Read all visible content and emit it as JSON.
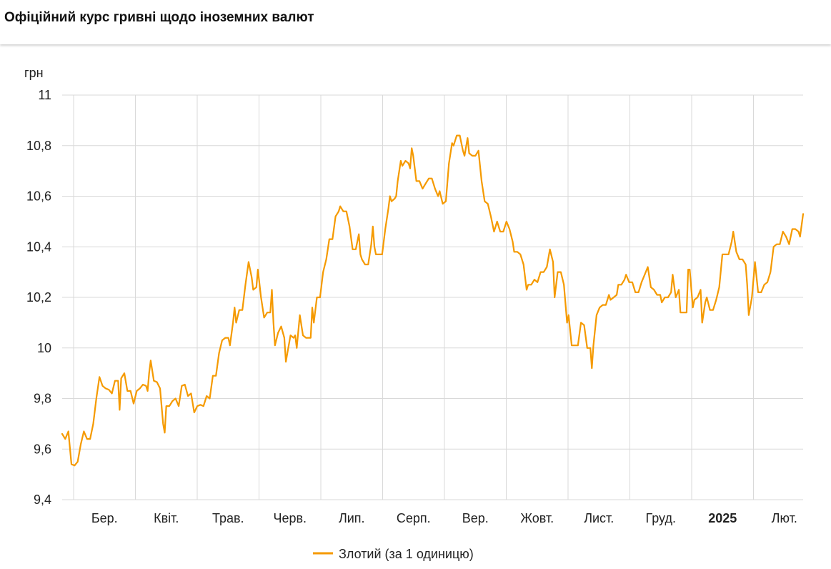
{
  "header": {
    "title": "Офіційний курс гривні щодо іноземних валют"
  },
  "colors": {
    "series": "#f59a00",
    "grid": "#d9d9d9"
  },
  "chart_data": {
    "type": "line",
    "ylabel": "грн",
    "ylim": [
      9.4,
      11
    ],
    "yticks": [
      "9,4",
      "9,6",
      "9,8",
      "10",
      "10,2",
      "10,4",
      "10,6",
      "10,8",
      "11"
    ],
    "yvalues": [
      9.4,
      9.6,
      9.8,
      10.0,
      10.2,
      10.4,
      10.6,
      10.8,
      11.0
    ],
    "xticks": [
      {
        "label": "Бер.",
        "bold": false
      },
      {
        "label": "Квіт.",
        "bold": false
      },
      {
        "label": "Трав.",
        "bold": false
      },
      {
        "label": "Черв.",
        "bold": false
      },
      {
        "label": "Лип.",
        "bold": false
      },
      {
        "label": "Серп.",
        "bold": false
      },
      {
        "label": "Вер.",
        "bold": false
      },
      {
        "label": "Жовт.",
        "bold": false
      },
      {
        "label": "Лист.",
        "bold": false
      },
      {
        "label": "Груд.",
        "bold": false
      },
      {
        "label": "2025",
        "bold": true
      },
      {
        "label": "Лют.",
        "bold": false
      }
    ],
    "grid": true,
    "legend": "bottom-center",
    "series": [
      {
        "name": "Злотий (за 1 одиницю)",
        "points": [
          [
            0,
            9.66
          ],
          [
            2,
            9.64
          ],
          [
            4,
            9.67
          ],
          [
            6,
            9.54
          ],
          [
            8,
            9.535
          ],
          [
            10,
            9.55
          ],
          [
            12,
            9.62
          ],
          [
            14,
            9.67
          ],
          [
            16,
            9.64
          ],
          [
            18,
            9.64
          ],
          [
            20,
            9.7
          ],
          [
            22,
            9.8
          ],
          [
            24,
            9.885
          ],
          [
            26,
            9.85
          ],
          [
            28,
            9.84
          ],
          [
            30,
            9.835
          ],
          [
            32,
            9.82
          ],
          [
            34,
            9.87
          ],
          [
            36,
            9.87
          ],
          [
            37,
            9.755
          ],
          [
            38,
            9.88
          ],
          [
            40,
            9.9
          ],
          [
            42,
            9.83
          ],
          [
            44,
            9.83
          ],
          [
            46,
            9.78
          ],
          [
            48,
            9.83
          ],
          [
            50,
            9.84
          ],
          [
            52,
            9.855
          ],
          [
            54,
            9.85
          ],
          [
            55,
            9.83
          ],
          [
            56,
            9.9
          ],
          [
            57,
            9.95
          ],
          [
            59,
            9.87
          ],
          [
            61,
            9.865
          ],
          [
            63,
            9.84
          ],
          [
            65,
            9.7
          ],
          [
            66,
            9.665
          ],
          [
            67,
            9.77
          ],
          [
            69,
            9.77
          ],
          [
            71,
            9.79
          ],
          [
            73,
            9.8
          ],
          [
            75,
            9.77
          ],
          [
            77,
            9.85
          ],
          [
            79,
            9.855
          ],
          [
            81,
            9.81
          ],
          [
            83,
            9.82
          ],
          [
            85,
            9.745
          ],
          [
            87,
            9.77
          ],
          [
            89,
            9.775
          ],
          [
            91,
            9.77
          ],
          [
            93,
            9.81
          ],
          [
            95,
            9.8
          ],
          [
            97,
            9.89
          ],
          [
            99,
            9.89
          ],
          [
            101,
            9.98
          ],
          [
            103,
            10.03
          ],
          [
            105,
            10.04
          ],
          [
            107,
            10.04
          ],
          [
            108,
            10.01
          ],
          [
            110,
            10.1
          ],
          [
            111,
            10.16
          ],
          [
            112,
            10.1
          ],
          [
            114,
            10.15
          ],
          [
            116,
            10.15
          ],
          [
            118,
            10.25
          ],
          [
            120,
            10.34
          ],
          [
            122,
            10.28
          ],
          [
            123,
            10.23
          ],
          [
            125,
            10.24
          ],
          [
            126,
            10.31
          ],
          [
            128,
            10.2
          ],
          [
            130,
            10.12
          ],
          [
            132,
            10.14
          ],
          [
            134,
            10.14
          ],
          [
            135,
            10.23
          ],
          [
            136,
            10.1
          ],
          [
            137,
            10.01
          ],
          [
            139,
            10.06
          ],
          [
            141,
            10.085
          ],
          [
            143,
            10.04
          ],
          [
            144,
            9.945
          ],
          [
            145,
            9.98
          ],
          [
            147,
            10.05
          ],
          [
            149,
            10.04
          ],
          [
            150,
            10.05
          ],
          [
            151,
            10.0
          ],
          [
            153,
            10.13
          ],
          [
            155,
            10.05
          ],
          [
            157,
            10.04
          ],
          [
            159,
            10.04
          ],
          [
            160,
            10.04
          ],
          [
            161,
            10.16
          ],
          [
            162,
            10.1
          ],
          [
            164,
            10.2
          ],
          [
            166,
            10.2
          ],
          [
            168,
            10.3
          ],
          [
            170,
            10.35
          ],
          [
            172,
            10.43
          ],
          [
            174,
            10.43
          ],
          [
            176,
            10.52
          ],
          [
            178,
            10.54
          ],
          [
            179,
            10.56
          ],
          [
            181,
            10.54
          ],
          [
            183,
            10.54
          ],
          [
            185,
            10.48
          ],
          [
            187,
            10.39
          ],
          [
            189,
            10.39
          ],
          [
            191,
            10.45
          ],
          [
            192,
            10.37
          ],
          [
            193,
            10.35
          ],
          [
            195,
            10.33
          ],
          [
            197,
            10.33
          ],
          [
            199,
            10.41
          ],
          [
            200,
            10.48
          ],
          [
            201,
            10.4
          ],
          [
            202,
            10.37
          ],
          [
            204,
            10.37
          ],
          [
            206,
            10.37
          ],
          [
            208,
            10.47
          ],
          [
            210,
            10.55
          ],
          [
            211,
            10.6
          ],
          [
            212,
            10.58
          ],
          [
            214,
            10.59
          ],
          [
            215,
            10.6
          ],
          [
            216,
            10.66
          ],
          [
            218,
            10.74
          ],
          [
            219,
            10.72
          ],
          [
            221,
            10.74
          ],
          [
            223,
            10.73
          ],
          [
            224,
            10.71
          ],
          [
            225,
            10.79
          ],
          [
            226,
            10.76
          ],
          [
            228,
            10.66
          ],
          [
            230,
            10.66
          ],
          [
            232,
            10.63
          ],
          [
            234,
            10.65
          ],
          [
            236,
            10.67
          ],
          [
            238,
            10.67
          ],
          [
            240,
            10.63
          ],
          [
            242,
            10.6
          ],
          [
            243,
            10.62
          ],
          [
            245,
            10.57
          ],
          [
            247,
            10.58
          ],
          [
            249,
            10.73
          ],
          [
            251,
            10.81
          ],
          [
            252,
            10.8
          ],
          [
            254,
            10.84
          ],
          [
            256,
            10.84
          ],
          [
            258,
            10.78
          ],
          [
            259,
            10.76
          ],
          [
            261,
            10.83
          ],
          [
            262,
            10.77
          ],
          [
            264,
            10.76
          ],
          [
            266,
            10.76
          ],
          [
            268,
            10.78
          ],
          [
            270,
            10.66
          ],
          [
            272,
            10.58
          ],
          [
            274,
            10.57
          ],
          [
            276,
            10.52
          ],
          [
            278,
            10.46
          ],
          [
            280,
            10.5
          ],
          [
            282,
            10.46
          ],
          [
            284,
            10.46
          ],
          [
            286,
            10.5
          ],
          [
            288,
            10.47
          ],
          [
            290,
            10.42
          ],
          [
            291,
            10.38
          ],
          [
            293,
            10.38
          ],
          [
            295,
            10.37
          ],
          [
            297,
            10.33
          ],
          [
            299,
            10.23
          ],
          [
            300,
            10.25
          ],
          [
            302,
            10.25
          ],
          [
            304,
            10.27
          ],
          [
            306,
            10.26
          ],
          [
            308,
            10.3
          ],
          [
            310,
            10.3
          ],
          [
            312,
            10.32
          ],
          [
            314,
            10.39
          ],
          [
            316,
            10.34
          ],
          [
            317,
            10.2
          ],
          [
            319,
            10.3
          ],
          [
            321,
            10.3
          ],
          [
            323,
            10.25
          ],
          [
            325,
            10.1
          ],
          [
            326,
            10.13
          ],
          [
            328,
            10.01
          ],
          [
            330,
            10.01
          ],
          [
            332,
            10.01
          ],
          [
            334,
            10.1
          ],
          [
            336,
            10.09
          ],
          [
            338,
            10.0
          ],
          [
            340,
            10.0
          ],
          [
            341,
            9.92
          ],
          [
            342,
            10.01
          ],
          [
            344,
            10.13
          ],
          [
            346,
            10.16
          ],
          [
            348,
            10.17
          ],
          [
            350,
            10.17
          ],
          [
            352,
            10.21
          ],
          [
            353,
            10.19
          ],
          [
            355,
            10.2
          ],
          [
            357,
            10.21
          ],
          [
            358,
            10.25
          ],
          [
            360,
            10.25
          ],
          [
            362,
            10.27
          ],
          [
            363,
            10.29
          ],
          [
            365,
            10.26
          ],
          [
            367,
            10.26
          ],
          [
            369,
            10.22
          ],
          [
            371,
            10.22
          ],
          [
            373,
            10.26
          ],
          [
            375,
            10.29
          ],
          [
            377,
            10.32
          ],
          [
            379,
            10.24
          ],
          [
            381,
            10.23
          ],
          [
            383,
            10.21
          ],
          [
            385,
            10.21
          ],
          [
            386,
            10.18
          ],
          [
            388,
            10.2
          ],
          [
            390,
            10.2
          ],
          [
            392,
            10.22
          ],
          [
            393,
            10.29
          ],
          [
            395,
            10.2
          ],
          [
            397,
            10.23
          ],
          [
            398,
            10.14
          ],
          [
            400,
            10.14
          ],
          [
            402,
            10.14
          ],
          [
            403,
            10.31
          ],
          [
            404,
            10.31
          ],
          [
            406,
            10.16
          ],
          [
            407,
            10.19
          ],
          [
            409,
            10.2
          ],
          [
            411,
            10.23
          ],
          [
            412,
            10.1
          ],
          [
            414,
            10.18
          ],
          [
            415,
            10.2
          ],
          [
            417,
            10.15
          ],
          [
            419,
            10.15
          ],
          [
            421,
            10.19
          ],
          [
            423,
            10.24
          ],
          [
            425,
            10.37
          ],
          [
            427,
            10.37
          ],
          [
            429,
            10.37
          ],
          [
            431,
            10.42
          ],
          [
            432,
            10.46
          ],
          [
            434,
            10.38
          ],
          [
            436,
            10.35
          ],
          [
            438,
            10.35
          ],
          [
            440,
            10.33
          ],
          [
            441,
            10.25
          ],
          [
            442,
            10.13
          ],
          [
            444,
            10.2
          ],
          [
            446,
            10.34
          ],
          [
            448,
            10.22
          ],
          [
            450,
            10.22
          ],
          [
            452,
            10.25
          ],
          [
            454,
            10.26
          ],
          [
            456,
            10.3
          ],
          [
            458,
            10.4
          ],
          [
            460,
            10.41
          ],
          [
            462,
            10.41
          ],
          [
            464,
            10.46
          ],
          [
            466,
            10.44
          ],
          [
            468,
            10.41
          ],
          [
            470,
            10.47
          ],
          [
            472,
            10.47
          ],
          [
            474,
            10.46
          ],
          [
            475,
            10.44
          ],
          [
            477,
            10.53
          ]
        ]
      }
    ]
  }
}
